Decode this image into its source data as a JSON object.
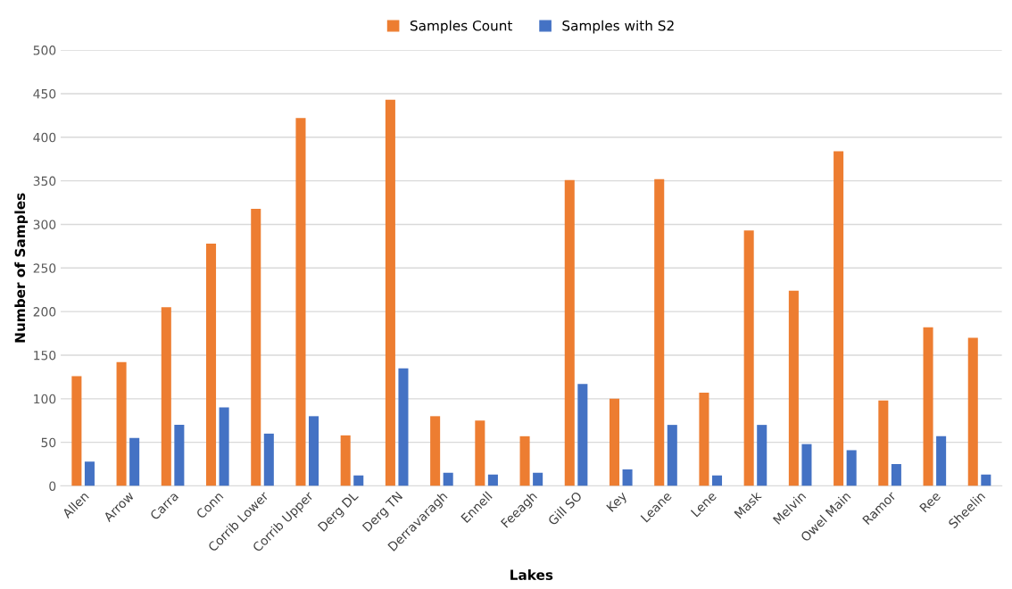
{
  "chart_data": {
    "type": "bar",
    "xlabel": "Lakes",
    "ylabel": "Number of Samples",
    "categories": [
      "Allen",
      "Arrow",
      "Carra",
      "Conn",
      "Corrib Lower",
      "Corrib Upper",
      "Derg DL",
      "Derg TN",
      "Derravaragh",
      "Ennell",
      "Feeagh",
      "Gill SO",
      "Key",
      "Leane",
      "Lene",
      "Mask",
      "Melvin",
      "Owel Main",
      "Ramor",
      "Ree",
      "Sheelin"
    ],
    "series": [
      {
        "name": "Samples Count",
        "color": "#ed7d31",
        "values": [
          126,
          142,
          205,
          278,
          318,
          422,
          58,
          443,
          80,
          75,
          57,
          351,
          100,
          352,
          107,
          293,
          224,
          384,
          98,
          182,
          170
        ]
      },
      {
        "name": "Samples with S2",
        "color": "#4472c4",
        "values": [
          28,
          55,
          70,
          90,
          60,
          80,
          12,
          135,
          15,
          13,
          15,
          117,
          19,
          70,
          12,
          70,
          48,
          41,
          25,
          57,
          13
        ]
      }
    ],
    "ylim": [
      0,
      500
    ],
    "yticks": [
      0,
      50,
      100,
      150,
      200,
      250,
      300,
      350,
      400,
      450,
      500
    ],
    "grid": "y",
    "legend": "top"
  }
}
